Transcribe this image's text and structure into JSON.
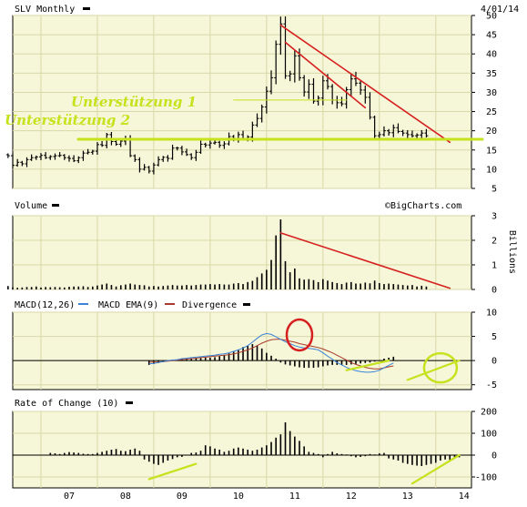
{
  "header": {
    "title": "SLV Monthly",
    "date": "4/01/14",
    "credit": "©BigCharts.com"
  },
  "colors": {
    "panel_bg": "#f6f6d8",
    "grid": "#d8d8a8",
    "bars": "#000000",
    "trend": "#d62020",
    "highlight": "#c6e21d",
    "macd_line": "#3a84d8",
    "ema_line": "#a83c2c"
  },
  "chart_data": [
    {
      "type": "ohlc",
      "panel": "price",
      "title": "SLV Monthly",
      "x_labels": [
        "07",
        "08",
        "09",
        "10",
        "11",
        "12",
        "13",
        "14"
      ],
      "y_ticks": [
        5,
        10,
        15,
        20,
        25,
        30,
        35,
        40,
        45,
        50
      ],
      "ylim": [
        5,
        50
      ],
      "grid": true,
      "series": [
        {
          "x_start": "2006-06",
          "close": [
            13.5,
            11.0,
            11.8,
            11.4,
            12.5,
            13.0,
            13.2,
            13.6,
            13.0,
            13.3,
            13.5,
            13.6,
            13.0,
            12.8,
            12.2,
            13.0,
            14.2,
            14.4,
            14.7,
            16.4,
            16.2,
            19.0,
            17.2,
            16.5,
            17.3,
            18.0,
            13.5,
            12.5,
            10.0,
            10.5,
            9.5,
            11.1,
            12.5,
            13.1,
            12.8,
            15.5,
            15.5,
            14.5,
            13.8,
            13.0,
            14.4,
            16.5,
            16.3,
            16.8,
            17.0,
            16.2,
            16.6,
            18.5,
            18.0,
            19.0,
            18.0,
            18.4,
            21.5,
            23.2,
            26.2,
            30.3,
            33.8,
            42.5,
            47.8,
            34.3,
            34.8,
            39.5,
            33.8,
            30.1,
            32.1,
            27.7,
            28.5,
            33.0,
            31.5,
            28.0,
            27.3,
            27.0,
            30.7,
            33.5,
            32.4,
            30.6,
            28.7,
            23.5,
            18.7,
            19.0,
            20.0,
            19.5,
            20.8,
            19.8,
            19.4,
            19.0,
            18.7,
            18.9,
            19.4,
            18.7
          ]
        }
      ],
      "annotations": [
        {
          "type": "trendline",
          "color": "trend",
          "from": [
            "2011-04",
            47.5
          ],
          "to": [
            "2014-04",
            17
          ]
        },
        {
          "type": "trendline",
          "color": "trend",
          "from": [
            "2011-05",
            43
          ],
          "to": [
            "2012-10",
            26
          ]
        },
        {
          "type": "support",
          "color": "highlight",
          "from": [
            "2006-11",
            17.8
          ],
          "to": [
            "2014-04",
            17.8
          ],
          "label": "Unterstützung 2"
        },
        {
          "type": "support",
          "color": "highlight",
          "from": [
            "2010-06",
            28
          ],
          "to": [
            "2012-06",
            28
          ],
          "label": "Unterstützung 1"
        }
      ]
    },
    {
      "type": "bar",
      "panel": "volume",
      "title": "Volume",
      "unit": "Billions",
      "y_ticks": [
        0,
        1,
        2,
        3
      ],
      "ylim": [
        0,
        3
      ],
      "series": [
        {
          "x_start": "2006-06",
          "values": [
            0.14,
            0.09,
            0.07,
            0.08,
            0.1,
            0.1,
            0.12,
            0.08,
            0.1,
            0.09,
            0.1,
            0.09,
            0.08,
            0.11,
            0.12,
            0.12,
            0.13,
            0.1,
            0.12,
            0.16,
            0.2,
            0.24,
            0.18,
            0.12,
            0.17,
            0.2,
            0.24,
            0.2,
            0.18,
            0.17,
            0.12,
            0.14,
            0.12,
            0.14,
            0.16,
            0.18,
            0.16,
            0.16,
            0.18,
            0.16,
            0.18,
            0.2,
            0.2,
            0.22,
            0.2,
            0.22,
            0.2,
            0.2,
            0.24,
            0.26,
            0.22,
            0.3,
            0.35,
            0.5,
            0.65,
            0.8,
            1.2,
            2.2,
            2.85,
            1.15,
            0.7,
            0.85,
            0.45,
            0.4,
            0.42,
            0.38,
            0.3,
            0.42,
            0.36,
            0.3,
            0.26,
            0.22,
            0.28,
            0.3,
            0.24,
            0.24,
            0.28,
            0.25,
            0.36,
            0.26,
            0.22,
            0.24,
            0.22,
            0.2,
            0.18,
            0.16,
            0.18,
            0.12,
            0.15,
            0.12
          ]
        }
      ],
      "annotations": [
        {
          "type": "trendline",
          "color": "trend",
          "from": [
            "2011-04",
            2.3
          ],
          "to": [
            "2014-04",
            0.05
          ]
        }
      ]
    },
    {
      "type": "line",
      "panel": "macd",
      "title": "MACD(12,26)",
      "y_ticks": [
        -5,
        0,
        5,
        10
      ],
      "ylim": [
        -6,
        10
      ],
      "legend": [
        {
          "label": "MACD EMA(9)",
          "color": "macd_line"
        },
        {
          "label": "Divergence",
          "color": "bars"
        }
      ],
      "series": [
        {
          "name": "MACD EMA(9)",
          "x_start": "2008-12",
          "values": [
            -0.7,
            -0.6,
            -0.4,
            -0.2,
            0,
            0.1,
            0.2,
            0.4,
            0.5,
            0.6,
            0.7,
            0.8,
            0.9,
            1.0,
            1.1,
            1.3,
            1.4,
            1.6,
            1.9,
            2.2,
            2.6,
            3.1,
            3.8,
            4.6,
            5.3,
            5.6,
            5.4,
            4.9,
            4.4,
            3.9,
            3.5,
            3.1,
            2.8,
            2.6,
            2.5,
            2.4,
            2.2,
            1.6,
            0.9,
            0.3,
            -0.4,
            -0.9,
            -1.4,
            -1.8,
            -2.1,
            -2.3,
            -2.4,
            -2.4,
            -2.3,
            -2.0,
            -1.5,
            -1.0,
            -0.5
          ]
        },
        {
          "name": "signal",
          "x_start": "2008-12",
          "values": [
            -0.3,
            -0.3,
            -0.3,
            -0.2,
            -0.1,
            0,
            0.1,
            0.2,
            0.3,
            0.4,
            0.5,
            0.6,
            0.7,
            0.8,
            0.9,
            1.0,
            1.1,
            1.2,
            1.4,
            1.6,
            1.9,
            2.2,
            2.6,
            3.1,
            3.6,
            4.0,
            4.3,
            4.4,
            4.4,
            4.2,
            4.0,
            3.8,
            3.5,
            3.3,
            3.1,
            2.9,
            2.7,
            2.4,
            2.0,
            1.6,
            1.1,
            0.6,
            0.1,
            -0.4,
            -0.8,
            -1.1,
            -1.4,
            -1.6,
            -1.7,
            -1.7,
            -1.5,
            -1.3,
            -1.1
          ]
        },
        {
          "name": "Divergence",
          "type": "bar",
          "x_start": "2008-12",
          "values": [
            -0.9,
            -0.7,
            -0.5,
            -0.3,
            -0.1,
            0.2,
            0.2,
            0.3,
            0.4,
            0.4,
            0.4,
            0.5,
            0.6,
            0.6,
            0.7,
            0.9,
            1.1,
            1.5,
            1.9,
            2.3,
            2.8,
            3.1,
            3.4,
            3.1,
            2.5,
            1.6,
            1.0,
            0.4,
            -0.4,
            -0.8,
            -1.0,
            -1.2,
            -1.4,
            -1.5,
            -1.5,
            -1.5,
            -1.4,
            -1.2,
            -1.0,
            -0.9,
            -0.9,
            -0.9,
            -0.9,
            -0.8,
            -0.7,
            -0.6,
            -0.5,
            -0.4,
            -0.2,
            0.1,
            0.4,
            0.6,
            0.8
          ]
        }
      ],
      "annotations": [
        {
          "type": "ellipse",
          "color": "trend",
          "at": [
            "2011-08",
            5.3
          ]
        },
        {
          "type": "ellipse",
          "color": "highlight",
          "at": [
            "2014-02",
            -1.5
          ]
        },
        {
          "type": "trendline",
          "color": "highlight",
          "from": [
            "2012-06",
            -2.0
          ],
          "to": [
            "2013-03",
            0
          ]
        },
        {
          "type": "trendline",
          "color": "highlight",
          "from": [
            "2013-07",
            -4.0
          ],
          "to": [
            "2014-06",
            0
          ]
        }
      ]
    },
    {
      "type": "bar",
      "panel": "roc",
      "title": "Rate of Change (10)",
      "y_ticks": [
        -100,
        0,
        100,
        200
      ],
      "ylim": [
        -150,
        200
      ],
      "series": [
        {
          "x_start": "2007-03",
          "values": [
            10,
            8,
            5,
            10,
            14,
            12,
            10,
            6,
            5,
            5,
            10,
            15,
            20,
            25,
            28,
            20,
            18,
            25,
            30,
            20,
            -20,
            -30,
            -40,
            -45,
            -35,
            -25,
            -18,
            -10,
            -8,
            -2,
            10,
            12,
            20,
            45,
            40,
            30,
            25,
            15,
            20,
            30,
            35,
            30,
            25,
            20,
            25,
            35,
            45,
            60,
            80,
            95,
            150,
            110,
            85,
            65,
            40,
            15,
            10,
            5,
            -10,
            5,
            15,
            8,
            5,
            3,
            -5,
            -10,
            -8,
            -5,
            5,
            3,
            8,
            10,
            -15,
            -20,
            -25,
            -35,
            -40,
            -45,
            -48,
            -50,
            -45,
            -40,
            -35,
            -25,
            -20,
            -25,
            -15,
            -10
          ]
        }
      ],
      "annotations": [
        {
          "type": "trendline",
          "color": "highlight",
          "from": [
            "2008-12",
            -110
          ],
          "to": [
            "2009-10",
            -40
          ]
        },
        {
          "type": "trendline",
          "color": "highlight",
          "from": [
            "2013-08",
            -130
          ],
          "to": [
            "2014-06",
            0
          ]
        }
      ]
    }
  ]
}
